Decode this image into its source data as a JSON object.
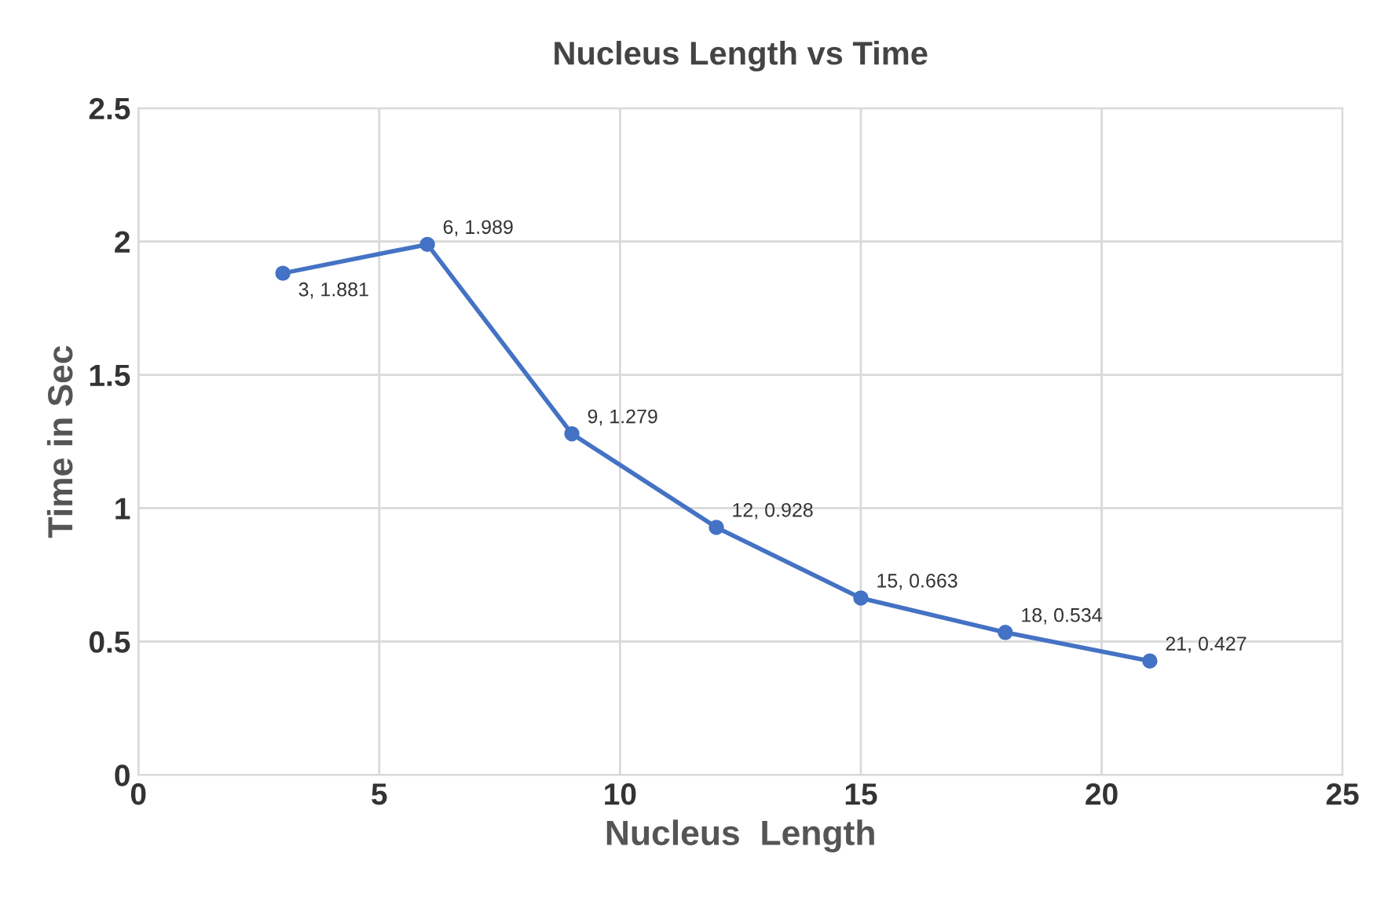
{
  "chart_data": {
    "type": "line",
    "title": "Nucleus Length vs Time",
    "xlabel": "Nucleus  Length",
    "ylabel": "Time in Sec",
    "x": [
      3,
      6,
      9,
      12,
      15,
      18,
      21
    ],
    "series": [
      {
        "color": "#4472c4",
        "values": [
          1.881,
          1.989,
          1.279,
          0.928,
          0.663,
          0.534,
          0.427
        ],
        "value_labels": [
          "3, 1.881",
          "6, 1.989",
          "9, 1.279",
          "12, 0.928",
          "15, 0.663",
          "18, 0.534",
          "21, 0.427"
        ]
      }
    ],
    "xlim": [
      0,
      25
    ],
    "xticks": [
      0,
      5,
      10,
      15,
      20,
      25
    ],
    "ylim": [
      0,
      2.5
    ],
    "yticks": [
      0,
      0.5,
      1,
      1.5,
      2,
      2.5
    ],
    "grid": true,
    "marker": "circle",
    "line_style": "solid"
  }
}
